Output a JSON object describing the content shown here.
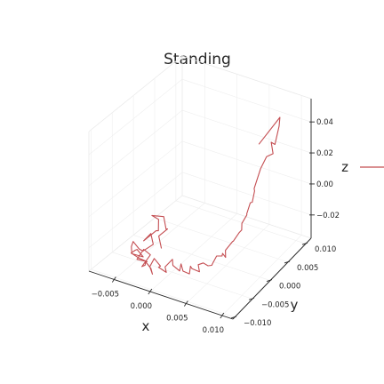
{
  "chart_data": {
    "type": "line",
    "title": "Standing",
    "xlabel": "x",
    "ylabel": "y",
    "zlabel": "z",
    "x_ticks": [
      "−0.005",
      "0.000",
      "0.005",
      "0.010"
    ],
    "y_ticks": [
      "−0.010",
      "−0.005",
      "0.000",
      "0.005",
      "0.010"
    ],
    "z_ticks": [
      "−0.02",
      "0.00",
      "0.02",
      "0.04"
    ],
    "xlim": [
      -0.0085,
      0.0115
    ],
    "ylim": [
      -0.0105,
      0.0115
    ],
    "zlim": [
      -0.035,
      0.055
    ],
    "legend": "right",
    "series": [
      {
        "name": "",
        "color": "#c44e52",
        "points": [
          [
            0.0101,
            -0.0005,
            0.052
          ],
          [
            0.0093,
            0.0068,
            0.051
          ],
          [
            0.0088,
            0.0075,
            0.043
          ],
          [
            0.009,
            0.006,
            0.035
          ],
          [
            0.0092,
            0.0046,
            0.04
          ],
          [
            0.0086,
            0.0062,
            0.028
          ],
          [
            0.0084,
            0.0048,
            0.029
          ],
          [
            0.0082,
            0.0035,
            0.024
          ],
          [
            0.0078,
            0.0025,
            0.013
          ],
          [
            0.0076,
            0.003,
            0.01
          ],
          [
            0.0079,
            0.0018,
            0.006
          ],
          [
            0.0074,
            0.0022,
            0.004
          ],
          [
            0.0072,
            0.0016,
            -0.002
          ],
          [
            0.007,
            0.002,
            -0.004
          ],
          [
            0.0067,
            0.0012,
            -0.008
          ],
          [
            0.0069,
            0.0008,
            -0.011
          ],
          [
            0.0064,
            0.001,
            -0.014
          ],
          [
            0.0062,
            -0.0002,
            -0.017
          ],
          [
            0.0058,
            0.0004,
            -0.019
          ],
          [
            0.0055,
            -0.001,
            -0.022
          ],
          [
            0.0058,
            -0.0015,
            -0.025
          ],
          [
            0.0052,
            -0.0012,
            -0.024
          ],
          [
            0.0049,
            -0.0008,
            -0.027
          ],
          [
            0.0045,
            -0.0015,
            -0.026
          ],
          [
            0.0042,
            -0.002,
            -0.03
          ],
          [
            0.0045,
            -0.0028,
            -0.029
          ],
          [
            0.0038,
            -0.0025,
            -0.031
          ],
          [
            0.0035,
            -0.0032,
            -0.028
          ],
          [
            0.003,
            -0.0036,
            -0.029
          ],
          [
            0.0034,
            -0.004,
            -0.032
          ],
          [
            0.0026,
            -0.0045,
            -0.03
          ],
          [
            0.002,
            -0.0038,
            -0.031
          ],
          [
            0.0024,
            -0.0048,
            -0.033
          ],
          [
            0.0016,
            -0.005,
            -0.032
          ],
          [
            0.0011,
            -0.0046,
            -0.029
          ],
          [
            0.0014,
            -0.0055,
            -0.031
          ],
          [
            0.0006,
            -0.0058,
            -0.028
          ],
          [
            0.0002,
            -0.0052,
            -0.026
          ],
          [
            -0.0004,
            -0.006,
            -0.03
          ],
          [
            0.0,
            -0.0064,
            -0.032
          ],
          [
            -0.0008,
            -0.0056,
            -0.034
          ],
          [
            -0.0012,
            -0.0062,
            -0.031
          ],
          [
            -0.0006,
            -0.0068,
            -0.028
          ],
          [
            -0.0016,
            -0.0066,
            -0.025
          ],
          [
            -0.002,
            -0.007,
            -0.03
          ],
          [
            -0.0014,
            -0.0074,
            -0.033
          ],
          [
            -0.0024,
            -0.006,
            -0.034
          ],
          [
            -0.0028,
            -0.0066,
            -0.029
          ],
          [
            -0.0021,
            -0.008,
            -0.027
          ],
          [
            -0.003,
            -0.0072,
            -0.031
          ],
          [
            -0.0026,
            -0.0058,
            -0.026
          ],
          [
            -0.0032,
            -0.0064,
            -0.022
          ],
          [
            -0.0038,
            -0.007,
            -0.028
          ],
          [
            -0.0034,
            -0.0052,
            -0.033
          ],
          [
            -0.004,
            -0.006,
            -0.03
          ],
          [
            -0.0044,
            -0.0074,
            -0.024
          ],
          [
            -0.0036,
            -0.0078,
            -0.02
          ],
          [
            -0.0046,
            -0.0056,
            -0.026
          ],
          [
            -0.0042,
            -0.0048,
            -0.032
          ],
          [
            -0.005,
            -0.0062,
            -0.028
          ],
          [
            -0.0046,
            -0.007,
            -0.021
          ],
          [
            -0.0054,
            -0.0052,
            -0.023
          ],
          [
            -0.005,
            -0.0044,
            -0.029
          ],
          [
            -0.004,
            -0.0052,
            -0.027
          ],
          [
            -0.003,
            -0.0044,
            -0.023
          ],
          [
            -0.0038,
            -0.0036,
            -0.019
          ],
          [
            -0.0046,
            -0.004,
            -0.024
          ],
          [
            -0.0034,
            -0.003,
            -0.018
          ],
          [
            -0.0026,
            -0.0038,
            -0.015
          ],
          [
            -0.0034,
            -0.0024,
            -0.012
          ],
          [
            -0.004,
            -0.003,
            -0.009
          ],
          [
            -0.003,
            -0.0018,
            -0.011
          ],
          [
            -0.0022,
            -0.0026,
            -0.016
          ],
          [
            -0.0028,
            -0.0012,
            -0.02
          ],
          [
            -0.0036,
            -0.002,
            -0.024
          ],
          [
            -0.0024,
            -0.0034,
            -0.027
          ]
        ]
      }
    ]
  }
}
